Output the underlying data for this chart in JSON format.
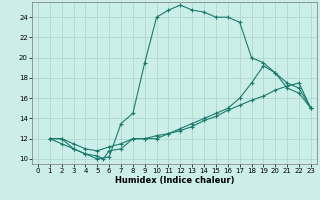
{
  "xlabel": "Humidex (Indice chaleur)",
  "bg_color": "#cceee8",
  "line_color": "#1a7a6e",
  "grid_color": "#b0d8d0",
  "xlim": [
    -0.5,
    23.5
  ],
  "ylim": [
    9.5,
    25.5
  ],
  "yticks": [
    10,
    12,
    14,
    16,
    18,
    20,
    22,
    24
  ],
  "xticks": [
    0,
    1,
    2,
    3,
    4,
    5,
    6,
    7,
    8,
    9,
    10,
    11,
    12,
    13,
    14,
    15,
    16,
    17,
    18,
    19,
    20,
    21,
    22,
    23
  ],
  "curve1_x": [
    1,
    2,
    3,
    4,
    5,
    6,
    7,
    8,
    9,
    10,
    11,
    12,
    13,
    14,
    15,
    16,
    17,
    18,
    19,
    20,
    21,
    22,
    23
  ],
  "curve1_y": [
    12,
    12,
    11,
    10.5,
    10,
    10.2,
    13.5,
    14.5,
    19.5,
    24,
    24.7,
    25.2,
    24.7,
    24.5,
    24,
    24,
    23.5,
    20,
    19.5,
    18.5,
    17,
    16.5,
    15
  ],
  "curve2_x": [
    1,
    2,
    3,
    4,
    5,
    5.5,
    6,
    7,
    8,
    9,
    10,
    11,
    12,
    13,
    14,
    15,
    16,
    17,
    18,
    19,
    20,
    21,
    22,
    23
  ],
  "curve2_y": [
    12,
    11.5,
    11,
    10.5,
    10.3,
    10,
    10.8,
    11,
    12,
    12,
    12.3,
    12.5,
    13,
    13.5,
    14,
    14.5,
    15,
    16,
    17.5,
    19.2,
    18.5,
    17.5,
    17,
    15
  ],
  "curve3_x": [
    1,
    2,
    3,
    4,
    5,
    6,
    7,
    8,
    9,
    10,
    11,
    12,
    13,
    14,
    15,
    16,
    17,
    18,
    19,
    20,
    21,
    22,
    23
  ],
  "curve3_y": [
    12,
    12,
    11.5,
    11,
    10.8,
    11.2,
    11.5,
    12,
    12,
    12,
    12.5,
    12.8,
    13.2,
    13.8,
    14.2,
    14.8,
    15.3,
    15.8,
    16.2,
    16.8,
    17.2,
    17.5,
    15
  ]
}
